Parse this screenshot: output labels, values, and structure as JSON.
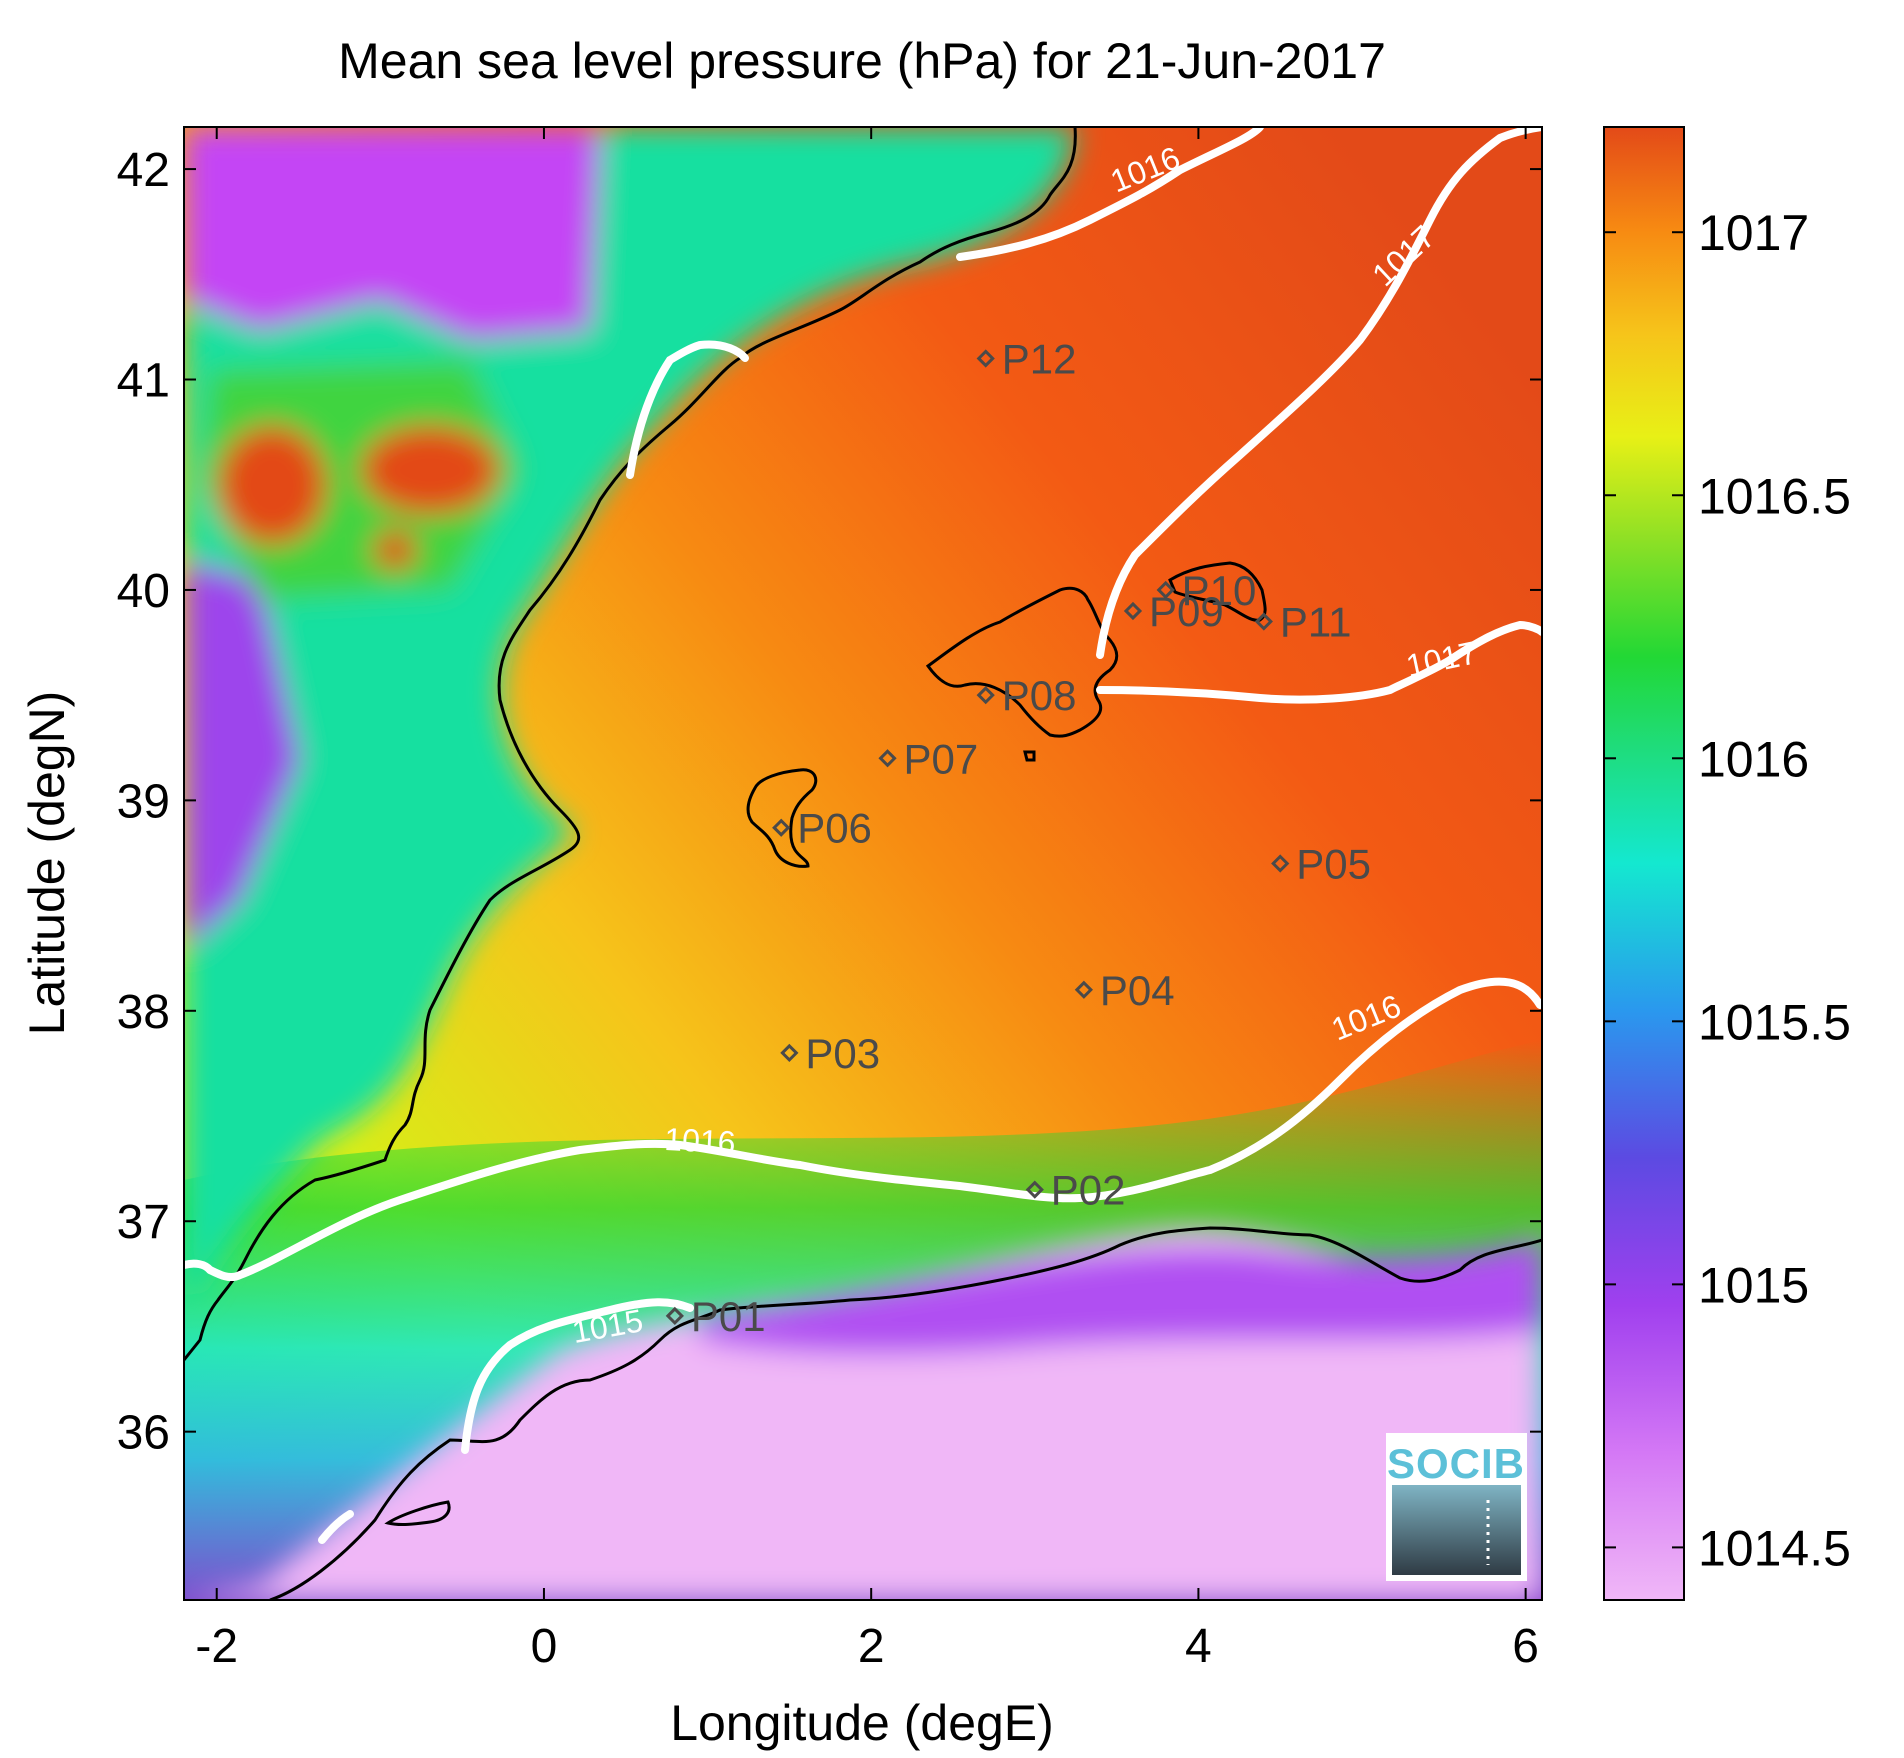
{
  "title": "Mean sea level pressure (hPa) for 21-Jun-2017",
  "xlabel": "Longitude (degE)",
  "ylabel": "Latitude (degN)",
  "colors": {
    "scale": [
      "#f0b7f7",
      "#c444f5",
      "#7a3fe0",
      "#3a6ae8",
      "#28b8f0",
      "#14e8d0",
      "#1fdc7a",
      "#22d835",
      "#8ee025",
      "#e8f016",
      "#f6c41a",
      "#f78a12",
      "#f35a14",
      "#e34a18"
    ],
    "contour": "#ffffff",
    "coast": "#000000",
    "station": "#4a4a4a",
    "logo": "#5cc0d8"
  },
  "chart_data": {
    "type": "heatmap",
    "xlim": [
      -2.2,
      6.1
    ],
    "ylim": [
      35.2,
      42.2
    ],
    "xticks": [
      "-2",
      "0",
      "2",
      "4",
      "6"
    ],
    "yticks": [
      "36",
      "37",
      "38",
      "39",
      "40",
      "41",
      "42"
    ],
    "colorbar": {
      "range": [
        1014.4,
        1017.2
      ],
      "ticks": [
        "1014.5",
        "1015",
        "1015.5",
        "1016",
        "1016.5",
        "1017"
      ]
    },
    "stations": [
      {
        "name": "P01",
        "lon": 0.8,
        "lat": 36.55
      },
      {
        "name": "P02",
        "lon": 3.0,
        "lat": 37.15
      },
      {
        "name": "P03",
        "lon": 1.5,
        "lat": 37.8
      },
      {
        "name": "P04",
        "lon": 3.3,
        "lat": 38.1
      },
      {
        "name": "P05",
        "lon": 4.5,
        "lat": 38.7
      },
      {
        "name": "P06",
        "lon": 1.45,
        "lat": 38.87
      },
      {
        "name": "P07",
        "lon": 2.1,
        "lat": 39.2
      },
      {
        "name": "P08",
        "lon": 2.7,
        "lat": 39.5
      },
      {
        "name": "P09",
        "lon": 3.6,
        "lat": 39.9
      },
      {
        "name": "P10",
        "lon": 3.8,
        "lat": 40.0
      },
      {
        "name": "P11",
        "lon": 4.4,
        "lat": 39.85
      },
      {
        "name": "P12",
        "lon": 2.7,
        "lat": 41.1
      }
    ],
    "contour_labels": [
      {
        "text": "1016",
        "lon": 3.7,
        "lat": 41.95,
        "angle": -22
      },
      {
        "text": "1017",
        "lon": 5.3,
        "lat": 41.55,
        "angle": -43
      },
      {
        "text": "1017",
        "lon": 5.5,
        "lat": 39.62,
        "angle": -12
      },
      {
        "text": "1016",
        "lon": 0.95,
        "lat": 37.33,
        "angle": 3
      },
      {
        "text": "1016",
        "lon": 5.05,
        "lat": 37.92,
        "angle": -22
      },
      {
        "text": "1015",
        "lon": 0.4,
        "lat": 36.45,
        "angle": -10
      }
    ]
  },
  "logo": {
    "text": "SOCIB"
  }
}
